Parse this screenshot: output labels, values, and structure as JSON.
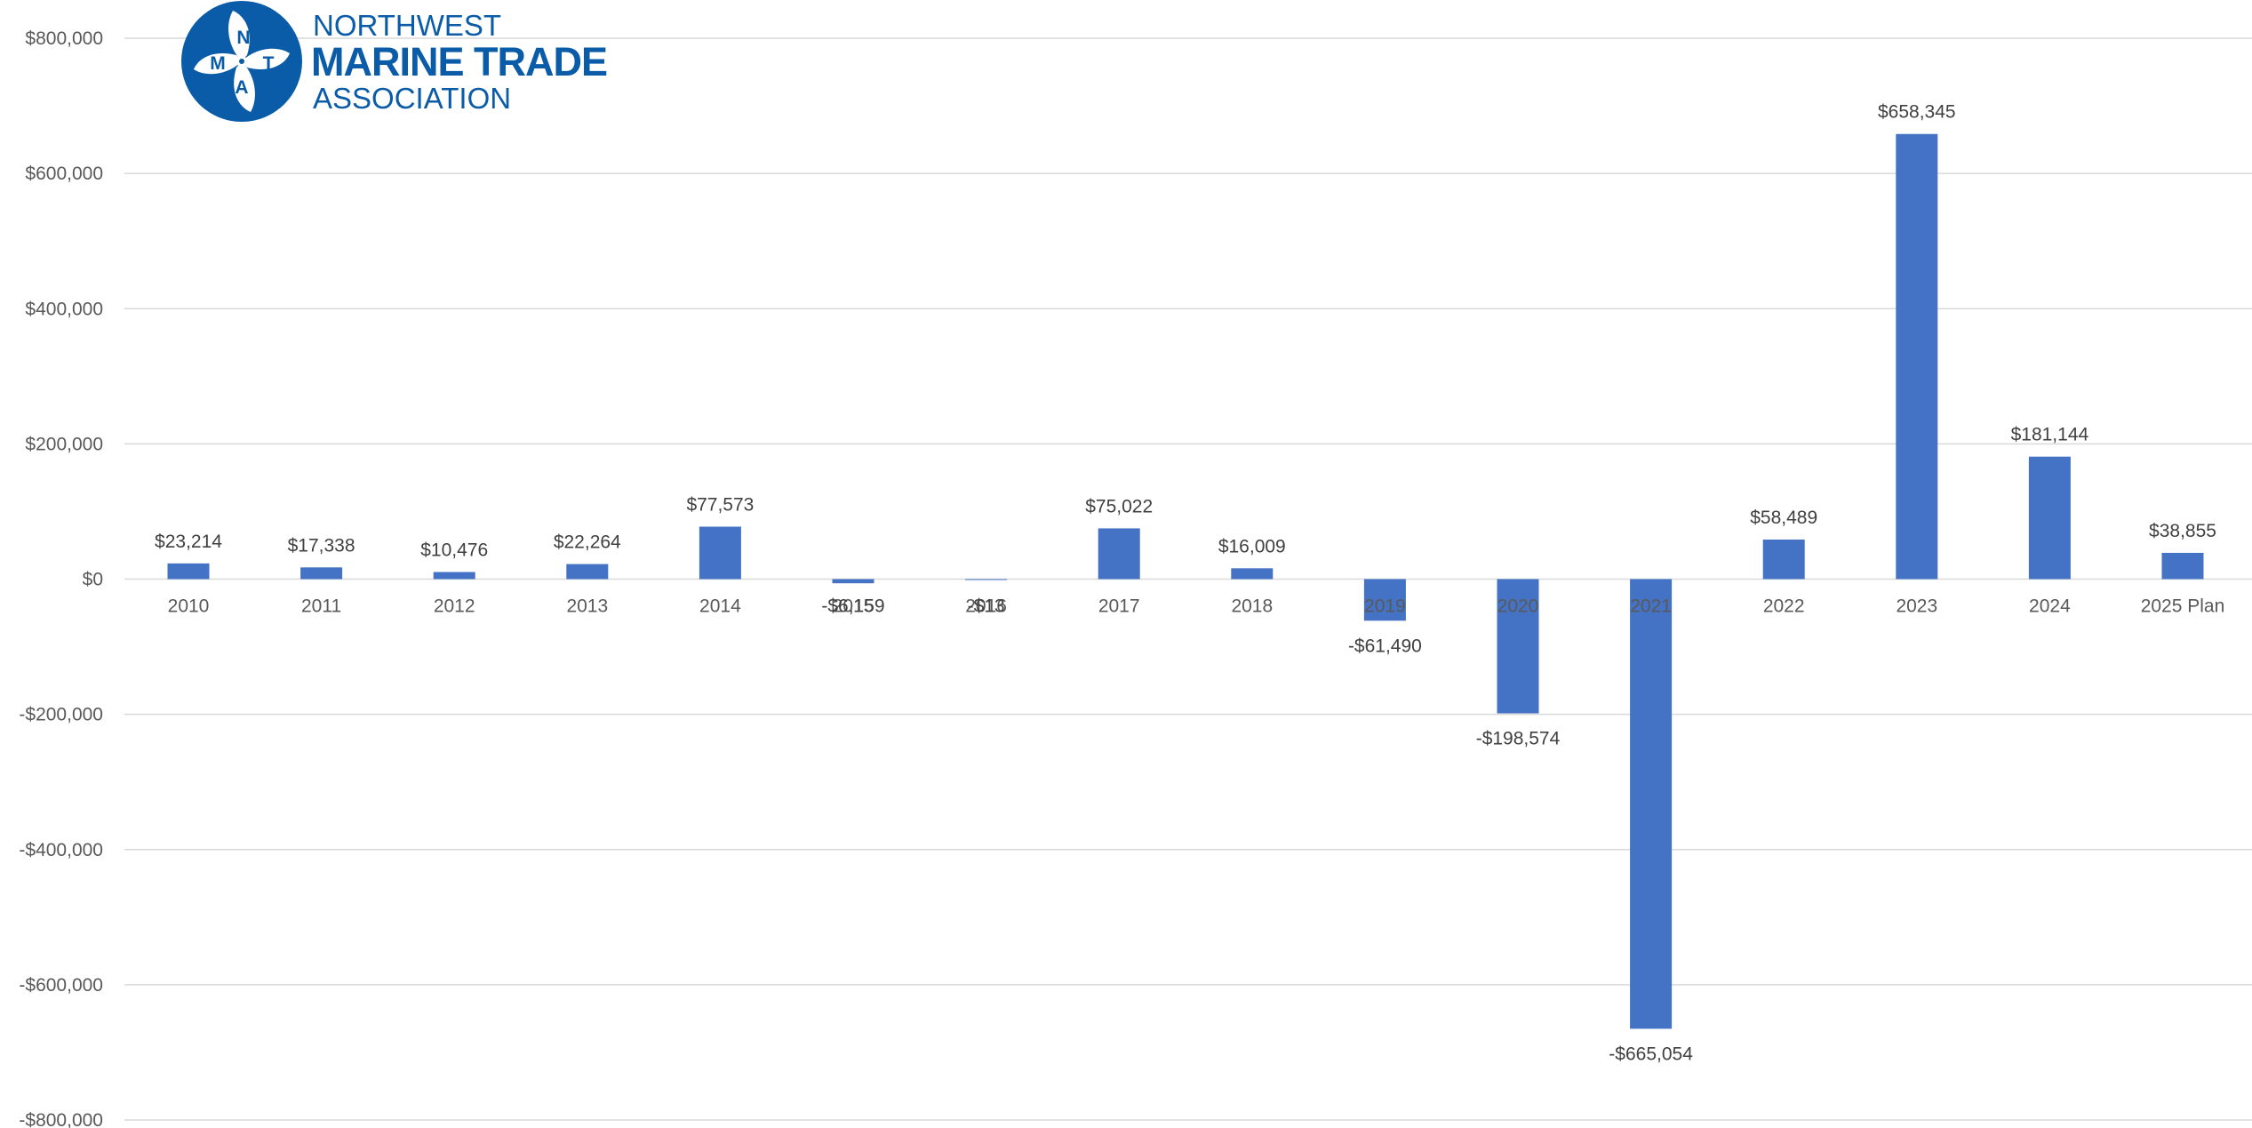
{
  "colors": {
    "bar": "#4472c4",
    "brand": "#0b5ca8",
    "gridline": "#d9d9d9",
    "axis_text": "#595959"
  },
  "logo": {
    "line1": "NORTHWEST",
    "line2": "MARINE TRADE",
    "line3": "ASSOCIATION",
    "emblem_letters": [
      "N",
      "T",
      "A",
      "M"
    ],
    "emblem_icon": "propeller-icon"
  },
  "chart_data": {
    "type": "bar",
    "title": "",
    "xlabel": "",
    "ylabel": "",
    "ylim": [
      -800000,
      800000
    ],
    "y_ticks": [
      {
        "value": 800000,
        "label": "$800,000"
      },
      {
        "value": 600000,
        "label": "$600,000"
      },
      {
        "value": 400000,
        "label": "$400,000"
      },
      {
        "value": 200000,
        "label": "$200,000"
      },
      {
        "value": 0,
        "label": "$0"
      },
      {
        "value": -200000,
        "label": "-$200,000"
      },
      {
        "value": -400000,
        "label": "-$400,000"
      },
      {
        "value": -600000,
        "label": "-$600,000"
      },
      {
        "value": -800000,
        "label": "-$800,000"
      }
    ],
    "grid": true,
    "legend": "none",
    "categories": [
      "2010",
      "2011",
      "2012",
      "2013",
      "2014",
      "2015",
      "2016",
      "2017",
      "2018",
      "2019",
      "2020",
      "2021",
      "2022",
      "2023",
      "2024",
      "2025 Plan"
    ],
    "values": [
      23214,
      17338,
      10476,
      22264,
      77573,
      -6159,
      -13,
      75022,
      16009,
      -61490,
      -198574,
      -665054,
      58489,
      658345,
      181144,
      38855
    ],
    "value_labels": [
      "$23,214",
      "$17,338",
      "$10,476",
      "$22,264",
      "$77,573",
      "-$6,159",
      "-$13",
      "$75,022",
      "$16,009",
      "-$61,490",
      "-$198,574",
      "-$665,054",
      "$58,489",
      "$658,345",
      "$181,144",
      "$38,855"
    ]
  }
}
